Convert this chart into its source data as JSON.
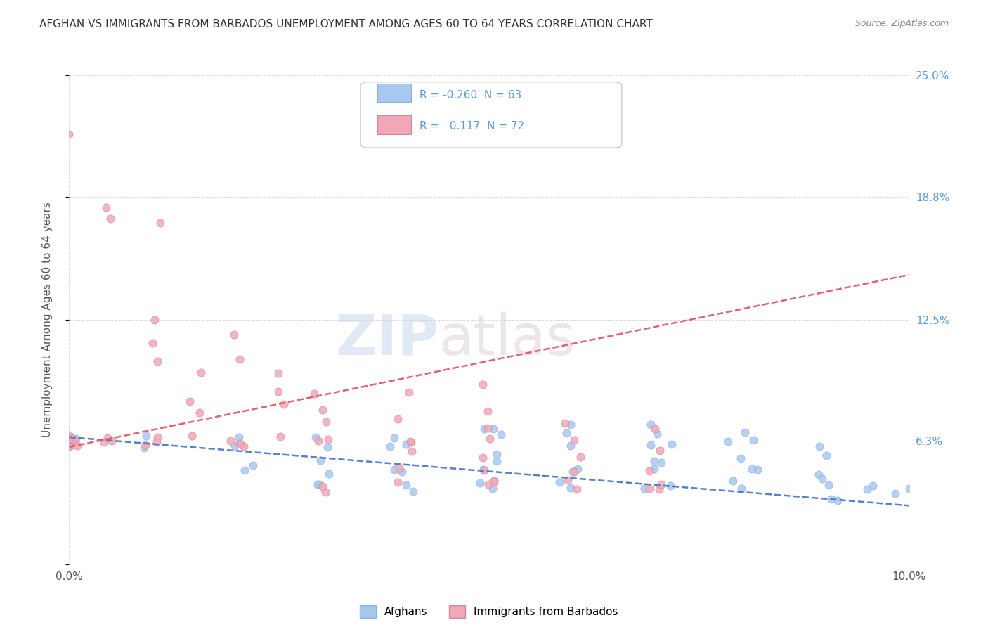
{
  "title": "AFGHAN VS IMMIGRANTS FROM BARBADOS UNEMPLOYMENT AMONG AGES 60 TO 64 YEARS CORRELATION CHART",
  "source": "Source: ZipAtlas.com",
  "ylabel": "Unemployment Among Ages 60 to 64 years",
  "xlim": [
    0.0,
    0.1
  ],
  "ylim": [
    0.0,
    0.25
  ],
  "ytick_positions": [
    0.0,
    0.063,
    0.125,
    0.188,
    0.25
  ],
  "right_ytick_positions": [
    0.063,
    0.125,
    0.188,
    0.25
  ],
  "right_ytick_labels": [
    "6.3%",
    "12.5%",
    "18.8%",
    "25.0%"
  ],
  "watermark_zip": "ZIP",
  "watermark_atlas": "atlas",
  "legend_R_afghans": "-0.260",
  "legend_N_afghans": "63",
  "legend_R_barbados": "0.117",
  "legend_N_barbados": "72",
  "afghans_color": "#a8c8f0",
  "barbados_color": "#f0a8b8",
  "trend_afghans_color": "#4472c4",
  "trend_barbados_color": "#e05060",
  "background_color": "#ffffff",
  "grid_color": "#cccccc",
  "title_color": "#333333",
  "axis_label_color": "#5b9bd5",
  "afghans_scatter_x": [
    0.0,
    0.01,
    0.01,
    0.02,
    0.02,
    0.02,
    0.02,
    0.03,
    0.03,
    0.03,
    0.03,
    0.03,
    0.03,
    0.04,
    0.04,
    0.04,
    0.04,
    0.04,
    0.04,
    0.04,
    0.05,
    0.05,
    0.05,
    0.05,
    0.05,
    0.05,
    0.05,
    0.05,
    0.06,
    0.06,
    0.06,
    0.06,
    0.06,
    0.06,
    0.06,
    0.07,
    0.07,
    0.07,
    0.07,
    0.07,
    0.07,
    0.07,
    0.07,
    0.07,
    0.08,
    0.08,
    0.08,
    0.08,
    0.08,
    0.08,
    0.08,
    0.08,
    0.09,
    0.09,
    0.09,
    0.09,
    0.09,
    0.09,
    0.09,
    0.095,
    0.095,
    0.098,
    0.1
  ],
  "afghans_scatter_y": [
    0.063,
    0.063,
    0.063,
    0.063,
    0.05,
    0.063,
    0.05,
    0.063,
    0.05,
    0.04,
    0.063,
    0.05,
    0.04,
    0.06,
    0.05,
    0.04,
    0.063,
    0.05,
    0.06,
    0.04,
    0.07,
    0.063,
    0.05,
    0.04,
    0.06,
    0.05,
    0.07,
    0.04,
    0.063,
    0.05,
    0.04,
    0.06,
    0.07,
    0.05,
    0.04,
    0.063,
    0.05,
    0.04,
    0.06,
    0.07,
    0.055,
    0.04,
    0.07,
    0.05,
    0.063,
    0.04,
    0.055,
    0.05,
    0.04,
    0.07,
    0.06,
    0.05,
    0.04,
    0.055,
    0.06,
    0.05,
    0.04,
    0.03,
    0.035,
    0.04,
    0.04,
    0.033,
    0.035
  ],
  "barbados_scatter_x": [
    0.0,
    0.0,
    0.0,
    0.0,
    0.0,
    0.0,
    0.0,
    0.0,
    0.0,
    0.0,
    0.0,
    0.005,
    0.005,
    0.005,
    0.005,
    0.005,
    0.01,
    0.01,
    0.01,
    0.01,
    0.01,
    0.01,
    0.01,
    0.015,
    0.015,
    0.015,
    0.015,
    0.02,
    0.02,
    0.02,
    0.02,
    0.02,
    0.02,
    0.025,
    0.025,
    0.025,
    0.025,
    0.03,
    0.03,
    0.03,
    0.03,
    0.03,
    0.03,
    0.03,
    0.04,
    0.04,
    0.04,
    0.04,
    0.04,
    0.04,
    0.04,
    0.05,
    0.05,
    0.05,
    0.05,
    0.05,
    0.05,
    0.05,
    0.05,
    0.05,
    0.06,
    0.06,
    0.06,
    0.06,
    0.06,
    0.06,
    0.07,
    0.07,
    0.07,
    0.07,
    0.07,
    0.07
  ],
  "barbados_scatter_y": [
    0.22,
    0.063,
    0.063,
    0.063,
    0.063,
    0.063,
    0.063,
    0.063,
    0.063,
    0.063,
    0.063,
    0.185,
    0.175,
    0.063,
    0.063,
    0.063,
    0.175,
    0.125,
    0.115,
    0.105,
    0.063,
    0.063,
    0.063,
    0.095,
    0.085,
    0.075,
    0.063,
    0.12,
    0.105,
    0.063,
    0.063,
    0.063,
    0.063,
    0.1,
    0.09,
    0.08,
    0.063,
    0.09,
    0.08,
    0.07,
    0.063,
    0.063,
    0.04,
    0.04,
    0.085,
    0.075,
    0.065,
    0.063,
    0.055,
    0.05,
    0.04,
    0.09,
    0.08,
    0.07,
    0.063,
    0.055,
    0.05,
    0.04,
    0.04,
    0.04,
    0.075,
    0.065,
    0.055,
    0.05,
    0.04,
    0.04,
    0.07,
    0.06,
    0.05,
    0.04,
    0.04,
    0.04
  ],
  "afghan_trend_y0": 0.065,
  "afghan_trend_y1": 0.03,
  "barbados_trend_y0": 0.06,
  "barbados_trend_y1": 0.148
}
